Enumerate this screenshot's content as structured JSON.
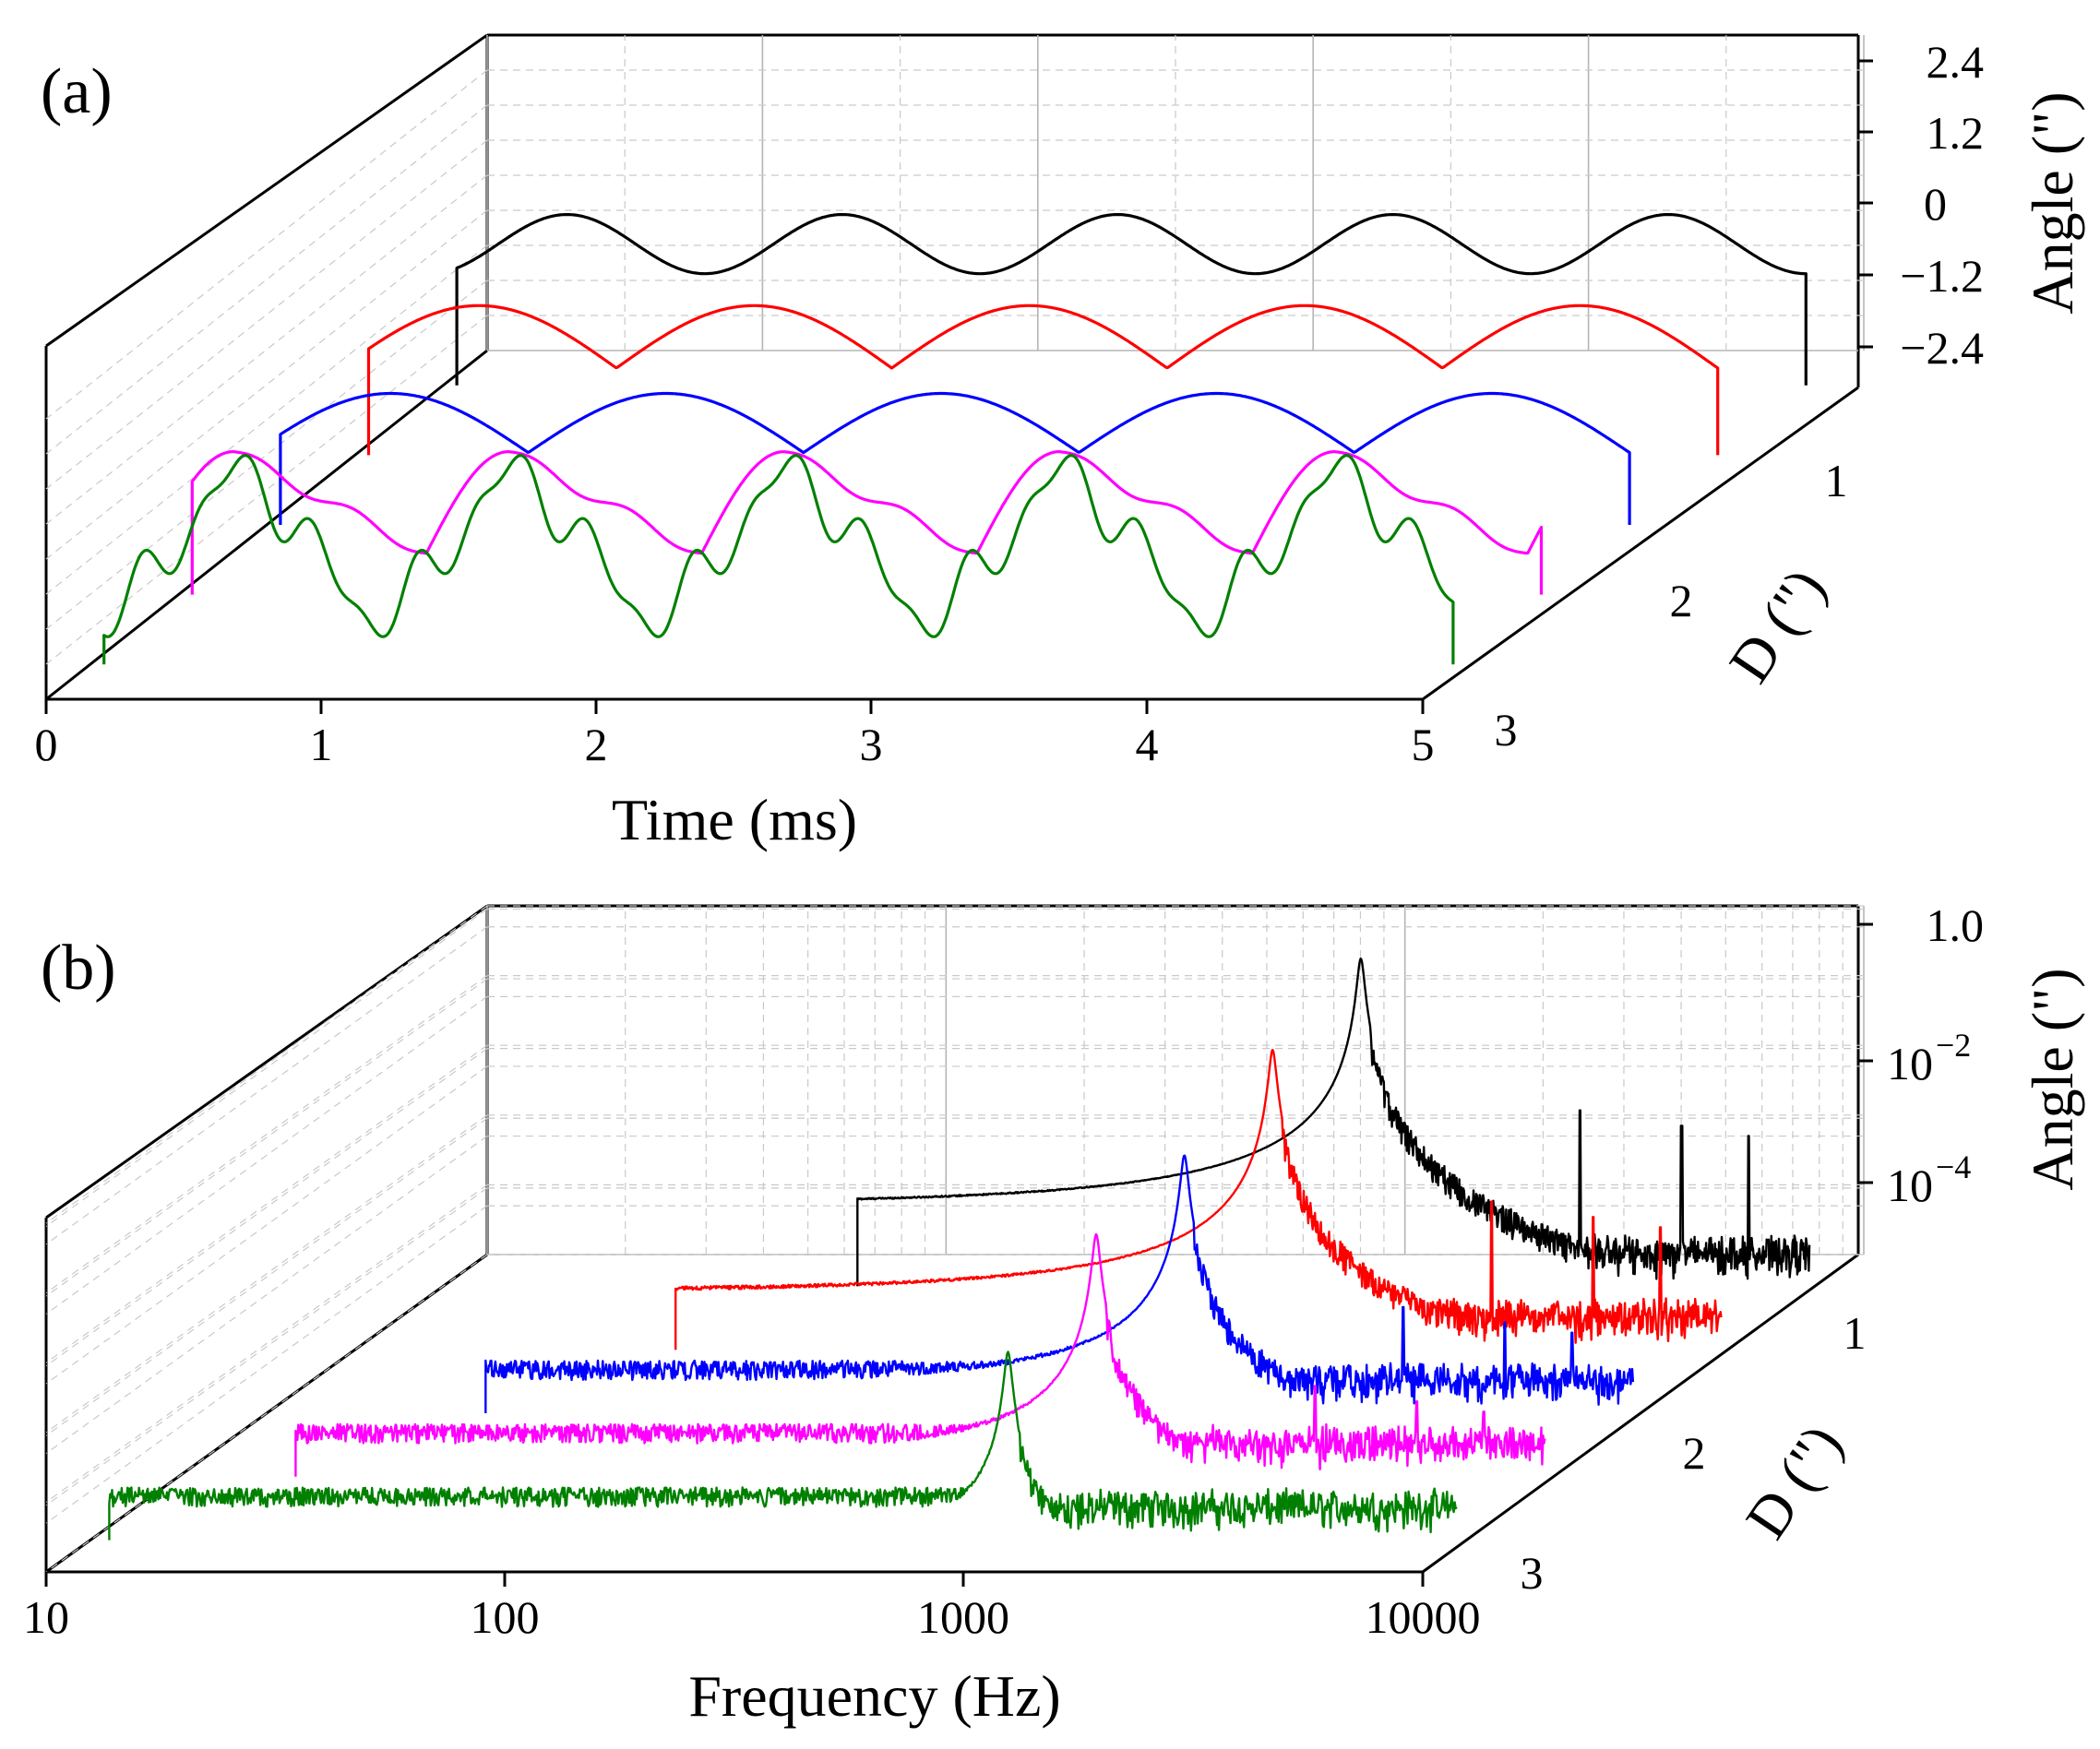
{
  "chart_data": [
    {
      "panel": "(a)",
      "type": "line",
      "projection": "3d-waterfall",
      "xlabel": "Time (ms)",
      "ylabel": "Angle (\")",
      "zlabel": "D (\")",
      "xlim": [
        0,
        5
      ],
      "ylim": [
        -2.4,
        2.4
      ],
      "xticks": [
        "0",
        "1",
        "2",
        "3",
        "4",
        "5"
      ],
      "yticks": [
        "2.4",
        "1.2",
        "0",
        "−1.2",
        "−2.4"
      ],
      "dticks": [
        "1",
        "2",
        "3"
      ],
      "grid": true,
      "series": [
        {
          "d": 0.3,
          "color": "#000000",
          "model": "sine",
          "amplitude": 0.9,
          "offset": -0.25,
          "period_ms": 1.0,
          "peak_times_ms": [
            0.45,
            1.45,
            2.45,
            3.45,
            4.45
          ]
        },
        {
          "d": 0.9,
          "color": "#ff0000",
          "model": "arch",
          "amplitude": 0.95,
          "offset": -0.6,
          "period_ms": 1.0,
          "peak_times_ms": [
            0.45,
            1.45,
            2.45,
            3.45,
            4.45
          ]
        },
        {
          "d": 1.5,
          "color": "#0000ff",
          "model": "arch",
          "amplitude": 0.9,
          "offset": -0.85,
          "period_ms": 1.0,
          "peak_times_ms": [
            0.45,
            1.45,
            2.45,
            3.45,
            4.45
          ]
        },
        {
          "d": 2.1,
          "color": "#ff00ff",
          "model": "sawtooth",
          "amplitude": 1.55,
          "offset": -1.0,
          "period_ms": 1.0,
          "peak_times_ms": [
            0.4,
            1.4,
            2.4,
            3.4,
            4.4
          ]
        },
        {
          "d": 2.7,
          "color": "#008000",
          "model": "complex",
          "amplitude": 1.85,
          "offset": -0.6,
          "period_ms": 1.0,
          "peak_times_ms": [
            0.05,
            1.05,
            2.05,
            3.05,
            4.05
          ]
        }
      ]
    },
    {
      "panel": "(b)",
      "type": "line",
      "projection": "3d-waterfall",
      "xlabel": "Frequency (Hz)",
      "ylabel": "Angle (\")",
      "zlabel": "D (\")",
      "xscale": "log",
      "yscale": "log",
      "xlim": [
        10,
        10000
      ],
      "ylim": [
        1e-05,
        1
      ],
      "xticks": [
        "10",
        "100",
        "1000",
        "10000"
      ],
      "yticks": [
        {
          "base": "1.0",
          "exp": ""
        },
        {
          "base": "10",
          "exp": "−2"
        },
        {
          "base": "10",
          "exp": "−4"
        }
      ],
      "dticks": [
        "1",
        "2",
        "3"
      ],
      "grid": true,
      "series": [
        {
          "d": 0.3,
          "color": "#000000",
          "peak_hz": 1000,
          "peak_value": 0.5,
          "noise_floor": 2e-05
        },
        {
          "d": 0.9,
          "color": "#ff0000",
          "peak_hz": 1000,
          "peak_value": 0.2,
          "noise_floor": 2e-05
        },
        {
          "d": 1.5,
          "color": "#0000ff",
          "peak_hz": 1000,
          "peak_value": 0.05,
          "noise_floor": 2e-05
        },
        {
          "d": 2.1,
          "color": "#ff00ff",
          "peak_hz": 1000,
          "peak_value": 0.03,
          "noise_floor": 2e-05
        },
        {
          "d": 2.7,
          "color": "#008000",
          "peak_hz": 1000,
          "peak_value": 0.005,
          "noise_floor": 2e-05
        }
      ]
    }
  ]
}
